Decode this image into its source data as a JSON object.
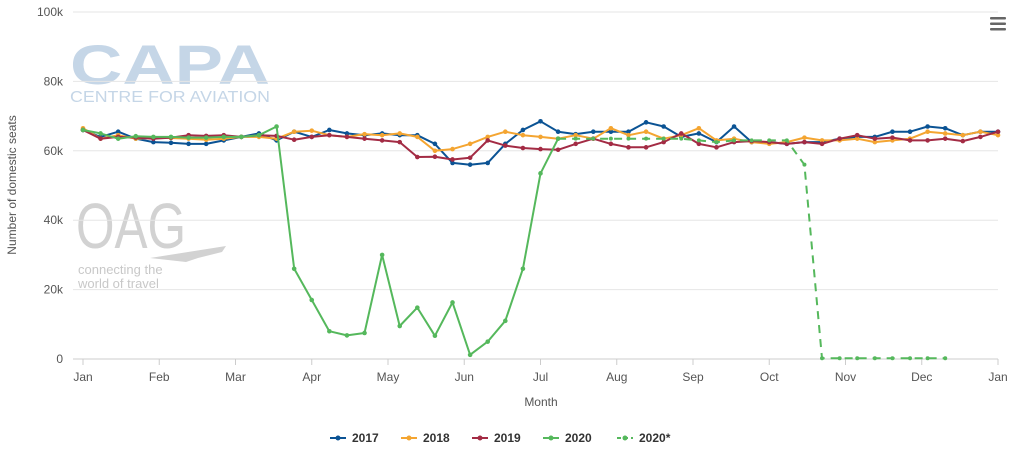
{
  "watermarks": {
    "capa_main": "CAPA",
    "capa_sub": "CENTRE FOR AVIATION",
    "oag_main": "OAG",
    "oag_tag1": "connecting the",
    "oag_tag2": "world of travel"
  },
  "menu_icon": "hamburger-menu-icon",
  "chart_data": {
    "type": "line",
    "title": "",
    "xlabel": "Month",
    "ylabel": "Number of domestic seats",
    "x_ticks": [
      "Jan",
      "Feb",
      "Mar",
      "Apr",
      "May",
      "Jun",
      "Jul",
      "Aug",
      "Sep",
      "Oct",
      "Nov",
      "Dec",
      "Jan"
    ],
    "y_ticks": [
      "0",
      "20k",
      "40k",
      "60k",
      "80k",
      "100k"
    ],
    "ylim": [
      0,
      100000
    ],
    "x_unit": "week",
    "xlim": [
      0,
      52
    ],
    "grid": true,
    "legend_position": "bottom-center",
    "series": [
      {
        "name": "2017",
        "color": "#0b5394",
        "dash": false,
        "x": [
          0,
          1,
          2,
          3,
          4,
          5,
          6,
          7,
          8,
          9,
          10,
          11,
          12,
          13,
          14,
          15,
          16,
          17,
          18,
          19,
          20,
          21,
          22,
          23,
          24,
          25,
          26,
          27,
          28,
          29,
          30,
          31,
          32,
          33,
          34,
          35,
          36,
          37,
          38,
          39,
          40,
          41,
          42,
          43,
          44,
          45,
          46,
          47,
          48,
          49,
          50,
          51,
          52
        ],
        "values": [
          66000,
          64000,
          65500,
          63500,
          62500,
          62300,
          62000,
          62000,
          63000,
          64000,
          65000,
          63000,
          65500,
          64000,
          66000,
          65000,
          64500,
          65000,
          64500,
          64500,
          62000,
          56500,
          56000,
          56500,
          62000,
          66000,
          68500,
          65500,
          64800,
          65500,
          65500,
          65500,
          68200,
          67000,
          64000,
          65000,
          62500,
          67000,
          62500,
          62500,
          62000,
          62500,
          62500,
          63500,
          64000,
          64000,
          65500,
          65500,
          67000,
          66500,
          64500,
          65500,
          65500
        ]
      },
      {
        "name": "2018",
        "color": "#f4a531",
        "dash": false,
        "x": [
          0,
          1,
          2,
          3,
          4,
          5,
          6,
          7,
          8,
          9,
          10,
          11,
          12,
          13,
          14,
          15,
          16,
          17,
          18,
          19,
          20,
          21,
          22,
          23,
          24,
          25,
          26,
          27,
          28,
          29,
          30,
          31,
          32,
          33,
          34,
          35,
          36,
          37,
          38,
          39,
          40,
          41,
          42,
          43,
          44,
          45,
          46,
          47,
          48,
          49,
          50,
          51,
          52
        ],
        "values": [
          66500,
          63500,
          64500,
          63500,
          63800,
          63700,
          63500,
          63200,
          63500,
          64000,
          64000,
          63500,
          65500,
          65800,
          64500,
          64000,
          64800,
          64500,
          65000,
          64000,
          60000,
          60500,
          62000,
          64000,
          65500,
          64500,
          64000,
          63500,
          64500,
          63500,
          66500,
          64500,
          65500,
          63500,
          64500,
          66500,
          63000,
          63500,
          62500,
          62000,
          62500,
          63800,
          63000,
          63000,
          63500,
          62500,
          63000,
          63500,
          65500,
          65000,
          64500,
          65500,
          64500
        ]
      },
      {
        "name": "2019",
        "color": "#a32b44",
        "dash": false,
        "x": [
          0,
          1,
          2,
          3,
          4,
          5,
          6,
          7,
          8,
          9,
          10,
          11,
          12,
          13,
          14,
          15,
          16,
          17,
          18,
          19,
          20,
          21,
          22,
          23,
          24,
          25,
          26,
          27,
          28,
          29,
          30,
          31,
          32,
          33,
          34,
          35,
          36,
          37,
          38,
          39,
          40,
          41,
          42,
          43,
          44,
          45,
          46,
          47,
          48,
          49,
          50,
          51,
          52
        ],
        "values": [
          66000,
          63500,
          64000,
          63800,
          63500,
          63800,
          64500,
          64300,
          64500,
          64000,
          64500,
          64300,
          63200,
          64000,
          64500,
          64000,
          63500,
          63000,
          62500,
          58200,
          58300,
          57500,
          58000,
          63000,
          61500,
          60800,
          60500,
          60300,
          62000,
          63500,
          62000,
          61000,
          61000,
          62500,
          65000,
          62000,
          61000,
          62500,
          62800,
          62500,
          62000,
          62500,
          62000,
          63500,
          64500,
          63500,
          63800,
          63000,
          63000,
          63500,
          62800,
          64000,
          65500
        ]
      },
      {
        "name": "2020",
        "color": "#55b85c",
        "dash": false,
        "x": [
          0,
          1,
          2,
          3,
          4,
          5,
          6,
          7,
          8,
          9,
          10,
          11,
          12,
          13,
          14,
          15,
          16,
          17,
          18,
          19,
          20,
          21,
          22,
          23,
          24,
          25,
          26,
          27
        ],
        "values": [
          66000,
          65000,
          63500,
          64200,
          64000,
          64000,
          63800,
          63800,
          64000,
          64000,
          64500,
          67000,
          26000,
          17000,
          8000,
          6800,
          7500,
          30000,
          9500,
          14800,
          6700,
          16300,
          1200,
          5000,
          11000,
          26000,
          53500,
          63500
        ]
      },
      {
        "name": "2020*",
        "color": "#55b85c",
        "dash": true,
        "x": [
          27,
          28,
          29,
          30,
          31,
          32,
          33,
          34,
          35,
          36,
          37,
          38,
          39,
          40,
          41,
          42,
          43,
          44,
          45,
          46,
          47,
          48,
          49
        ],
        "values": [
          63500,
          63500,
          63500,
          63500,
          63500,
          63500,
          63500,
          63500,
          63000,
          62500,
          63000,
          63000,
          63000,
          63000,
          56000,
          200,
          200,
          200,
          200,
          200,
          200,
          200,
          200
        ]
      }
    ]
  }
}
